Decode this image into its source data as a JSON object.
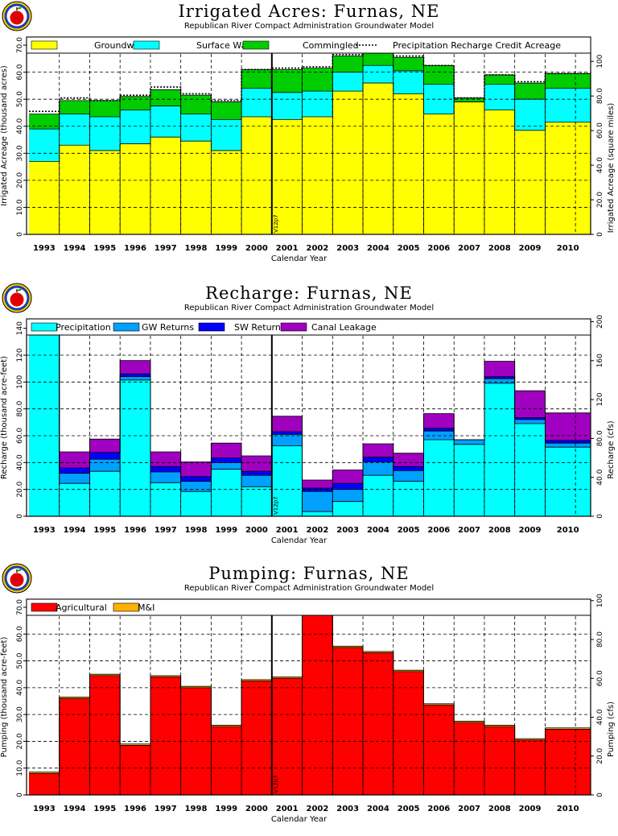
{
  "chart_data": [
    {
      "type": "area",
      "title": "Irrigated Acres: Furnas, NE",
      "subtitle": "Republican River Compact Administration Groundwater Model",
      "xlabel": "Calendar Year",
      "ylabel": "Irrigated Acreage (thousand acres)",
      "y2label": "Irrigated Acreage (square miles)",
      "categories": [
        "1993",
        "1994",
        "1995",
        "1996",
        "1997",
        "1998",
        "1999",
        "2000",
        "2001",
        "2002",
        "2003",
        "2004",
        "2005",
        "2006",
        "2007",
        "2008",
        "2009",
        "2010"
      ],
      "ylim": [
        0,
        73
      ],
      "yticks": [
        0,
        10,
        20,
        30,
        40,
        50,
        60,
        70
      ],
      "ytick_labels": [
        "0",
        "10.0",
        "20.0",
        "30.0",
        "40.0",
        "50.0",
        "60.0",
        "70.0"
      ],
      "y2ticks": [
        0,
        20,
        40,
        60,
        80,
        100
      ],
      "y2tick_labels": [
        "0",
        "20.0",
        "40.0",
        "60.0",
        "80.0",
        "100"
      ],
      "y2_factor": 1.5625,
      "marker_year": "2000.5",
      "marker_label": "V12p7",
      "legend_position": "top",
      "series": [
        {
          "name": "Groundwater",
          "color": "#ffff00",
          "values": [
            27,
            33,
            31,
            33.5,
            36,
            34.5,
            31,
            43.5,
            42.5,
            43.5,
            53,
            56,
            52,
            44.5,
            49,
            46,
            38.5,
            41.5
          ]
        },
        {
          "name": "Surface Water",
          "color": "#00ffff",
          "values": [
            12,
            11.5,
            12.5,
            12.5,
            11.5,
            10,
            11.5,
            10.5,
            10,
            9.5,
            7,
            6.5,
            8.5,
            11,
            0,
            9.5,
            11.5,
            12.5
          ]
        },
        {
          "name": "Commingled",
          "color": "#00cc00",
          "values": [
            5.5,
            5,
            6,
            5,
            6,
            7,
            6.5,
            7,
            8.5,
            8.5,
            6,
            7,
            5,
            7,
            1.5,
            3.5,
            6,
            5.5
          ]
        }
      ],
      "line_series": {
        "name": "Precipitation Recharge Credit Acreage",
        "values": [
          45.5,
          50.5,
          49.5,
          51.5,
          54.5,
          52,
          49.5,
          61,
          61.5,
          62,
          66.5,
          70,
          66,
          62.5,
          50.5,
          59,
          56.5,
          59.5
        ]
      }
    },
    {
      "type": "area",
      "title": "Recharge: Furnas, NE",
      "subtitle": "Republican River Compact Administration Groundwater Model",
      "xlabel": "Calendar Year",
      "ylabel": "Recharge (thousand acre-feet)",
      "y2label": "Recharge (cfs)",
      "categories": [
        "1993",
        "1994",
        "1995",
        "1996",
        "1997",
        "1998",
        "1999",
        "2000",
        "2001",
        "2002",
        "2003",
        "2004",
        "2005",
        "2006",
        "2007",
        "2008",
        "2009",
        "2010"
      ],
      "ylim": [
        0,
        147
      ],
      "yticks": [
        0,
        20,
        40,
        60,
        80,
        100,
        120,
        140
      ],
      "ytick_labels": [
        "0",
        "20.0",
        "40.0",
        "60.0",
        "80.0",
        "100",
        "120",
        "140"
      ],
      "y2ticks": [
        0,
        40,
        80,
        120,
        160,
        200
      ],
      "y2tick_labels": [
        "0",
        "40.0",
        "80.0",
        "120",
        "160",
        "200"
      ],
      "y2_factor": 1.38,
      "marker_year": "2000.5",
      "marker_label": "V12p7",
      "legend_position": "top",
      "series": [
        {
          "name": "Precipitation",
          "color": "#00ffff",
          "values": [
            135.5,
            24.5,
            33.5,
            101.5,
            25,
            18.5,
            35,
            22,
            52.5,
            3.5,
            11,
            30.5,
            26,
            57,
            53.5,
            99,
            69,
            51.5
          ]
        },
        {
          "name": "GW Returns",
          "color": "#00a0ff",
          "values": [
            1,
            7.5,
            9,
            2.5,
            8,
            7.5,
            5,
            8.5,
            8.5,
            15,
            9,
            10,
            8,
            6.5,
            3.5,
            3.5,
            3,
            3
          ]
        },
        {
          "name": "SW Returns",
          "color": "#0000ff",
          "values": [
            1,
            4,
            5,
            2,
            4,
            3.5,
            3.5,
            3,
            2,
            2.5,
            4.5,
            3.5,
            3,
            2,
            0,
            1.5,
            1.5,
            2
          ]
        },
        {
          "name": "Canal Leakage",
          "color": "#a000c0",
          "values": [
            6.5,
            12,
            10,
            10,
            11,
            11,
            11,
            11.5,
            11.5,
            6,
            10,
            10,
            10,
            11,
            0,
            11.5,
            20,
            20.5
          ]
        }
      ]
    },
    {
      "type": "area",
      "title": "Pumping: Furnas, NE",
      "subtitle": "Republican River Compact Administration Groundwater Model",
      "xlabel": "Calendar Year",
      "ylabel": "Pumping (thousand acre-feet)",
      "y2label": "Pumping (cfs)",
      "categories": [
        "1993",
        "1994",
        "1995",
        "1996",
        "1997",
        "1998",
        "1999",
        "2000",
        "2001",
        "2002",
        "2003",
        "2004",
        "2005",
        "2006",
        "2007",
        "2008",
        "2009",
        "2010"
      ],
      "ylim": [
        0,
        73
      ],
      "yticks": [
        0,
        10,
        20,
        30,
        40,
        50,
        60,
        70
      ],
      "ytick_labels": [
        "0",
        "10.0",
        "20.0",
        "30.0",
        "40.0",
        "50.0",
        "60.0",
        "70.0"
      ],
      "y2ticks": [
        0,
        20,
        40,
        60,
        80,
        100
      ],
      "y2tick_labels": [
        "0",
        "20.0",
        "40.0",
        "60.0",
        "80.0",
        "100"
      ],
      "y2_factor": 1.38,
      "marker_year": "2000.5",
      "marker_label": "V12p7",
      "legend_position": "top",
      "series": [
        {
          "name": "Agricultural",
          "color": "#ff0000",
          "values": [
            8,
            36,
            44.5,
            18.5,
            44,
            40,
            25.5,
            42.5,
            43.5,
            70.5,
            55,
            53,
            46,
            33.5,
            27,
            25.5,
            20.5,
            24.5
          ]
        },
        {
          "name": "M&I",
          "color": "#ffb000",
          "values": [
            0.5,
            0.5,
            0.5,
            0.5,
            0.5,
            0.5,
            0.5,
            0.5,
            0.5,
            0.5,
            0.5,
            0.5,
            0.5,
            0.5,
            0.5,
            0.5,
            0.5,
            0.5
          ]
        }
      ]
    }
  ]
}
